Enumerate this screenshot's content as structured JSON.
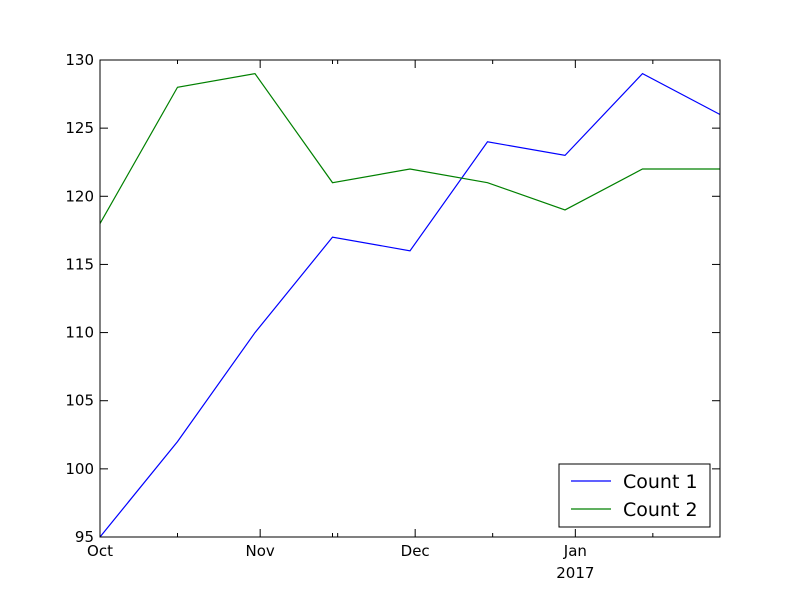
{
  "chart_data": {
    "type": "line",
    "title": "",
    "xlabel": "",
    "ylabel": "",
    "x": [
      "2016-10-01",
      "2016-10-16",
      "2016-10-31",
      "2016-11-15",
      "2016-11-30",
      "2016-12-15",
      "2016-12-30",
      "2017-01-14",
      "2017-01-29"
    ],
    "xlim": [
      "2016-10-01",
      "2017-01-29"
    ],
    "ylim": [
      95,
      130
    ],
    "yticks": [
      95,
      100,
      105,
      110,
      115,
      120,
      125,
      130
    ],
    "xticks": [
      {
        "date": "2016-10-01",
        "label": "Oct",
        "sublabel": ""
      },
      {
        "date": "2016-11-01",
        "label": "Nov",
        "sublabel": ""
      },
      {
        "date": "2016-12-01",
        "label": "Dec",
        "sublabel": ""
      },
      {
        "date": "2017-01-01",
        "label": "Jan",
        "sublabel": "2017"
      }
    ],
    "x_minor_ticks": [
      "2016-10-16",
      "2016-11-15",
      "2016-11-16",
      "2016-12-16",
      "2017-01-16"
    ],
    "grid": false,
    "legend_position": "bottom-right",
    "series": [
      {
        "name": "Count 1",
        "color": "#0000ff",
        "values": [
          95,
          102,
          110,
          117,
          116,
          124,
          123,
          129,
          126
        ]
      },
      {
        "name": "Count 2",
        "color": "#008000",
        "values": [
          118,
          128,
          129,
          121,
          122,
          121,
          119,
          122,
          122
        ]
      }
    ]
  }
}
